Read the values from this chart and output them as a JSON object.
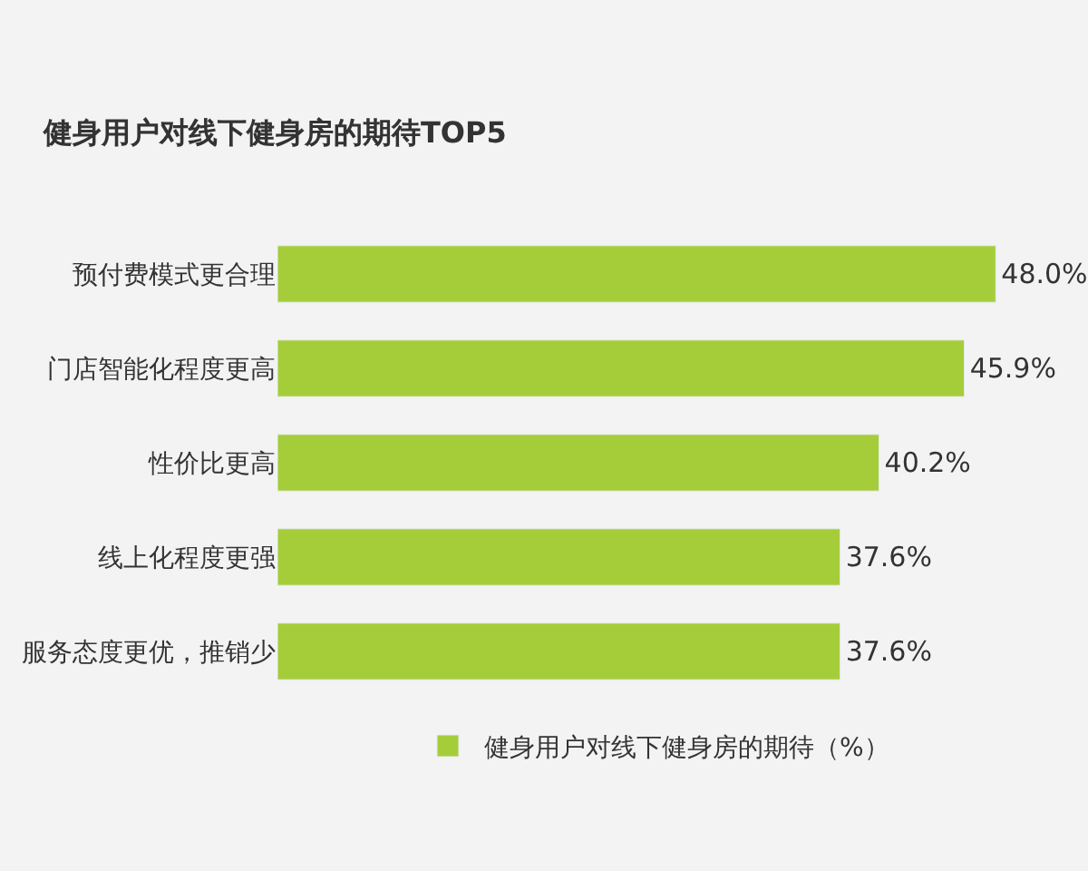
{
  "chart_data": {
    "type": "bar",
    "orientation": "horizontal",
    "title": "健身用户对线下健身房的期待TOP5",
    "categories": [
      "预付费模式更合理",
      "门店智能化程度更高",
      "性价比更高",
      "线上化程度更强",
      "服务态度更优，推销少"
    ],
    "series": [
      {
        "name": "健身用户对线下健身房的期待（%）",
        "color": "#a5cd39",
        "values": [
          48.0,
          45.9,
          40.2,
          37.6,
          37.6
        ],
        "value_labels": [
          "48.0%",
          "45.9%",
          "40.2%",
          "37.6%",
          "37.6%"
        ]
      }
    ],
    "legend": "bottom",
    "grid": false
  }
}
